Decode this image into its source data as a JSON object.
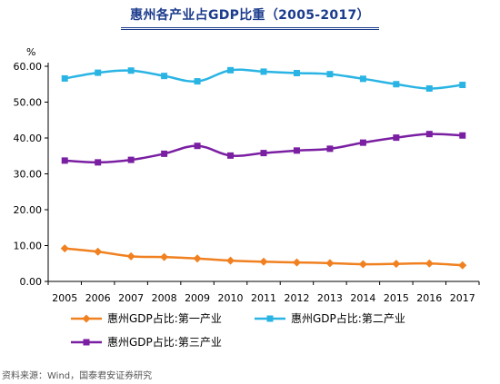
{
  "title": "惠州各产业占GDP比重（2005-2017）",
  "source": "资料来源：Wind，国泰君安证券研究",
  "colors": {
    "title": "#1b3b8c",
    "primary": "#f08020",
    "secondary": "#2ab4e4",
    "tertiary": "#7a1fa2"
  },
  "chart_data": {
    "type": "line",
    "unit_label": "%",
    "x": [
      "2005",
      "2006",
      "2007",
      "2008",
      "2009",
      "2010",
      "2011",
      "2012",
      "2013",
      "2014",
      "2015",
      "2016",
      "2017"
    ],
    "ylim": [
      0,
      60
    ],
    "yticks": [
      "0.00",
      "10.00",
      "20.00",
      "30.00",
      "40.00",
      "50.00",
      "60.00"
    ],
    "grid": false,
    "legend_position": "bottom",
    "series": [
      {
        "name": "惠州GDP占比:第一产业",
        "color": "#f08020",
        "marker": "diamond",
        "values": [
          9.2,
          8.3,
          7.0,
          6.8,
          6.4,
          5.8,
          5.5,
          5.3,
          5.1,
          4.8,
          4.9,
          5.0,
          4.5
        ]
      },
      {
        "name": "惠州GDP占比:第二产业",
        "color": "#2ab4e4",
        "marker": "square",
        "values": [
          56.6,
          58.2,
          58.8,
          57.3,
          55.8,
          58.9,
          58.5,
          58.1,
          57.8,
          56.5,
          55.0,
          53.8,
          54.8
        ]
      },
      {
        "name": "惠州GDP占比:第三产业",
        "color": "#7a1fa2",
        "marker": "square",
        "values": [
          33.7,
          33.2,
          33.9,
          35.6,
          37.8,
          35.1,
          35.8,
          36.5,
          37.0,
          38.7,
          40.1,
          41.1,
          40.7
        ]
      }
    ]
  }
}
